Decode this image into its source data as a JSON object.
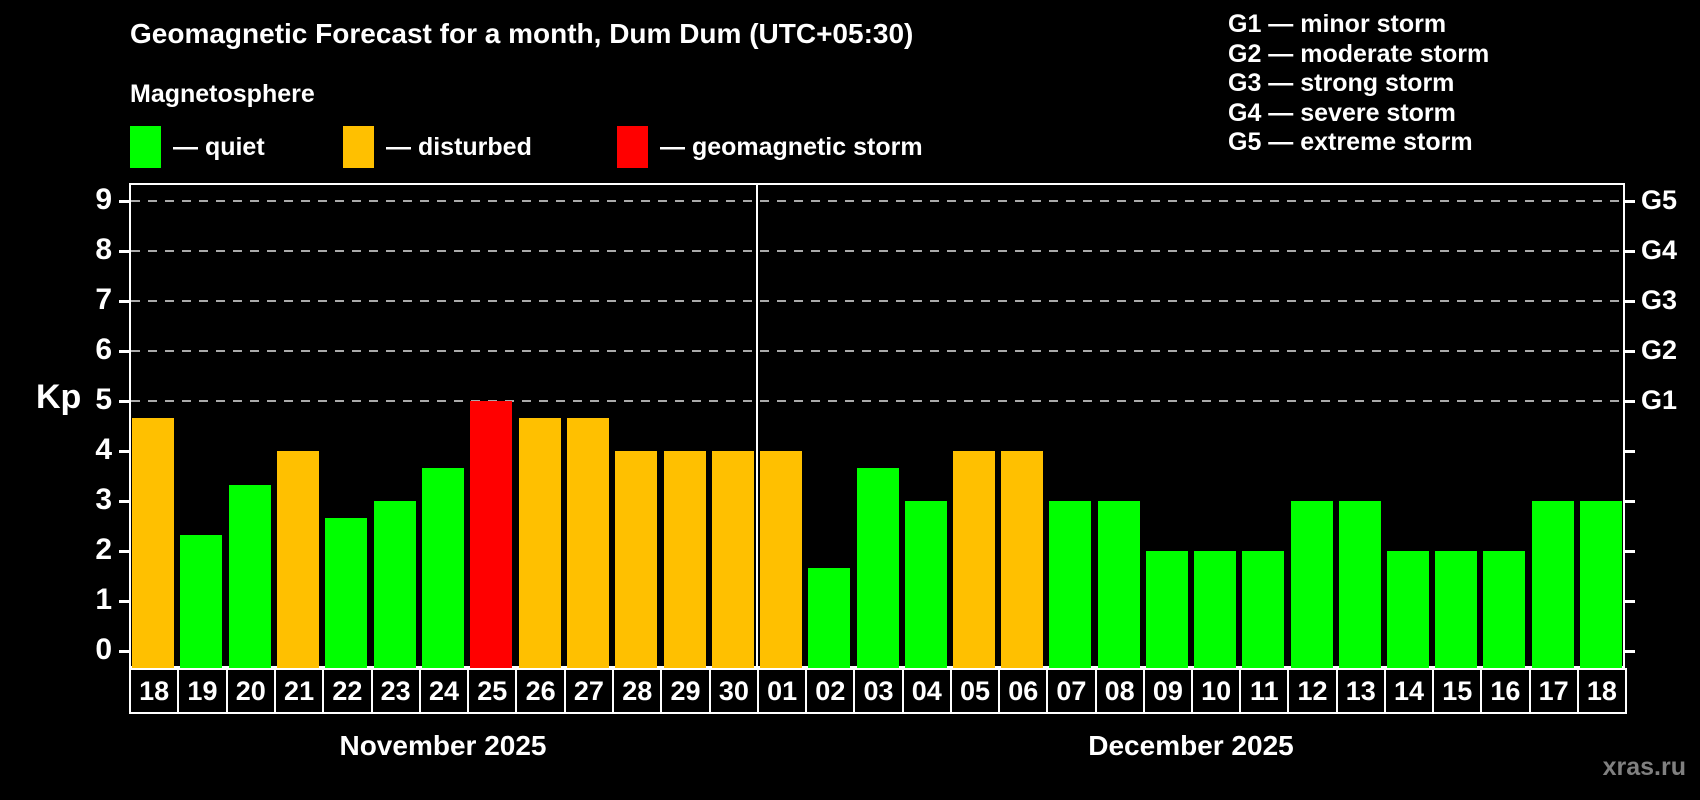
{
  "title": "Geomagnetic Forecast for a month, Dum Dum (UTC+05:30)",
  "subtitle": "Magnetosphere",
  "bar_legend": [
    {
      "status": "quiet",
      "label": "— quiet"
    },
    {
      "status": "disturbed",
      "label": "— disturbed"
    },
    {
      "status": "storm",
      "label": "— geomagnetic storm"
    }
  ],
  "g_scale_legend": [
    "G1 — minor storm",
    "G2 — moderate storm",
    "G3 — strong storm",
    "G4 — severe storm",
    "G5 — extreme storm"
  ],
  "watermark": "xras.ru",
  "colors": {
    "quiet": "#00ff00",
    "disturbed": "#ffc000",
    "storm": "#ff0000",
    "background": "#000000",
    "grid": "#aaaaaa",
    "axis": "#ffffff"
  },
  "chart_data": {
    "type": "bar",
    "title": "Geomagnetic Forecast for a month, Dum Dum (UTC+05:30)",
    "ylabel": "Kp",
    "ylim": [
      0,
      9.6
    ],
    "yticks": [
      0,
      1,
      2,
      3,
      4,
      5,
      6,
      7,
      8,
      9
    ],
    "gridlines_at": [
      5,
      6,
      7,
      8,
      9
    ],
    "grid": true,
    "legend_position": "top-left",
    "right_axis": [
      {
        "kp": 5,
        "label": "G1"
      },
      {
        "kp": 6,
        "label": "G2"
      },
      {
        "kp": 7,
        "label": "G3"
      },
      {
        "kp": 8,
        "label": "G4"
      },
      {
        "kp": 9,
        "label": "G5"
      }
    ],
    "months": [
      {
        "label": "November 2025",
        "days": [
          {
            "date": "18",
            "kp": 4.67,
            "status": "disturbed"
          },
          {
            "date": "19",
            "kp": 2.33,
            "status": "quiet"
          },
          {
            "date": "20",
            "kp": 3.33,
            "status": "quiet"
          },
          {
            "date": "21",
            "kp": 4.0,
            "status": "disturbed"
          },
          {
            "date": "22",
            "kp": 2.67,
            "status": "quiet"
          },
          {
            "date": "23",
            "kp": 3.0,
            "status": "quiet"
          },
          {
            "date": "24",
            "kp": 3.67,
            "status": "quiet"
          },
          {
            "date": "25",
            "kp": 5.0,
            "status": "storm"
          },
          {
            "date": "26",
            "kp": 4.67,
            "status": "disturbed"
          },
          {
            "date": "27",
            "kp": 4.67,
            "status": "disturbed"
          },
          {
            "date": "28",
            "kp": 4.0,
            "status": "disturbed"
          },
          {
            "date": "29",
            "kp": 4.0,
            "status": "disturbed"
          },
          {
            "date": "30",
            "kp": 4.0,
            "status": "disturbed"
          }
        ]
      },
      {
        "label": "December 2025",
        "days": [
          {
            "date": "01",
            "kp": 4.0,
            "status": "disturbed"
          },
          {
            "date": "02",
            "kp": 1.67,
            "status": "quiet"
          },
          {
            "date": "03",
            "kp": 3.67,
            "status": "quiet"
          },
          {
            "date": "04",
            "kp": 3.0,
            "status": "quiet"
          },
          {
            "date": "05",
            "kp": 4.0,
            "status": "disturbed"
          },
          {
            "date": "06",
            "kp": 4.0,
            "status": "disturbed"
          },
          {
            "date": "07",
            "kp": 3.0,
            "status": "quiet"
          },
          {
            "date": "08",
            "kp": 3.0,
            "status": "quiet"
          },
          {
            "date": "09",
            "kp": 2.0,
            "status": "quiet"
          },
          {
            "date": "10",
            "kp": 2.0,
            "status": "quiet"
          },
          {
            "date": "11",
            "kp": 2.0,
            "status": "quiet"
          },
          {
            "date": "12",
            "kp": 3.0,
            "status": "quiet"
          },
          {
            "date": "13",
            "kp": 3.0,
            "status": "quiet"
          },
          {
            "date": "14",
            "kp": 2.0,
            "status": "quiet"
          },
          {
            "date": "15",
            "kp": 2.0,
            "status": "quiet"
          },
          {
            "date": "16",
            "kp": 2.0,
            "status": "quiet"
          },
          {
            "date": "17",
            "kp": 3.0,
            "status": "quiet"
          },
          {
            "date": "18",
            "kp": 3.0,
            "status": "quiet"
          }
        ]
      }
    ]
  }
}
